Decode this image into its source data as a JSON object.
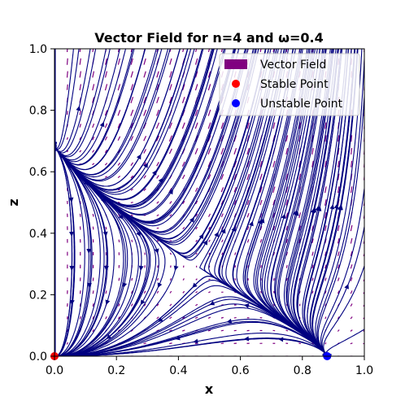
{
  "chart_data": {
    "type": "streamplot",
    "title": "Vector Field for n=4 and ω=0.4",
    "xlabel": "x",
    "ylabel": "z",
    "xlim": [
      0.0,
      1.0
    ],
    "ylim": [
      0.0,
      1.0
    ],
    "xticks": [
      "0.0",
      "0.2",
      "0.4",
      "0.6",
      "0.8",
      "1.0"
    ],
    "yticks": [
      "0.0",
      "0.2",
      "0.4",
      "0.6",
      "0.8",
      "1.0"
    ],
    "grid": false,
    "legend_position": "top-right",
    "legend": [
      {
        "label": "Vector Field",
        "marker": "rect",
        "color": "#800080"
      },
      {
        "label": "Stable Point",
        "marker": "circle",
        "color": "#ff0000"
      },
      {
        "label": "Unstable Point",
        "marker": "circle",
        "color": "#0000ff"
      }
    ],
    "points": [
      {
        "name": "Stable Point",
        "x": 0.0,
        "y": 0.0,
        "color": "#ff0000"
      },
      {
        "name": "Unstable Point",
        "x": 0.88,
        "y": 0.0,
        "color": "#0000ff"
      }
    ],
    "colors": {
      "stream": "#000080",
      "quiver": "#800080"
    }
  }
}
